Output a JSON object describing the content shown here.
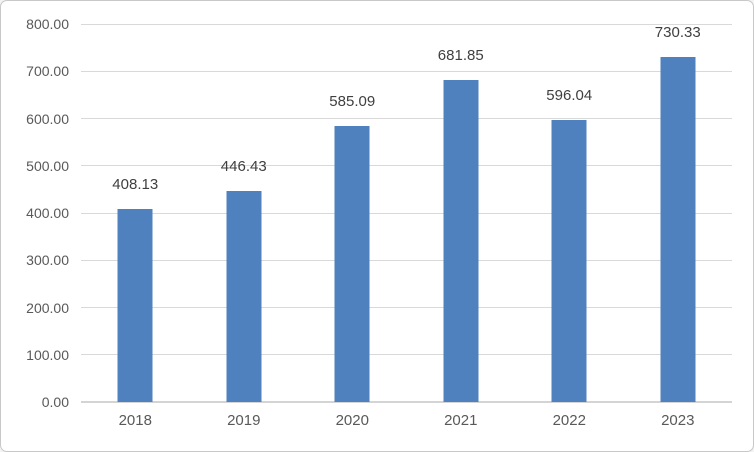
{
  "chart_data": {
    "type": "bar",
    "title": "",
    "categories": [
      "2018",
      "2019",
      "2020",
      "2021",
      "2022",
      "2023"
    ],
    "values": [
      408.13,
      446.43,
      585.09,
      681.85,
      596.04,
      730.33
    ],
    "data_labels": [
      "408.13",
      "446.43",
      "585.09",
      "681.85",
      "596.04",
      "730.33"
    ],
    "ylim": [
      0,
      800
    ],
    "ytick_step": 100,
    "ytick_labels": [
      "0.00",
      "100.00",
      "200.00",
      "300.00",
      "400.00",
      "500.00",
      "600.00",
      "700.00",
      "800.00"
    ],
    "xlabel": "",
    "ylabel": "",
    "grid": true,
    "legend": "none",
    "colors": {
      "bar_fill": "#4e81bd",
      "gridline": "#d9d9d9",
      "axis_line": "#d4d4d4",
      "tick_text": "#595959",
      "data_label_text": "#3f3f3f",
      "background": "#ffffff",
      "frame_border": "#c8c8c8"
    }
  }
}
